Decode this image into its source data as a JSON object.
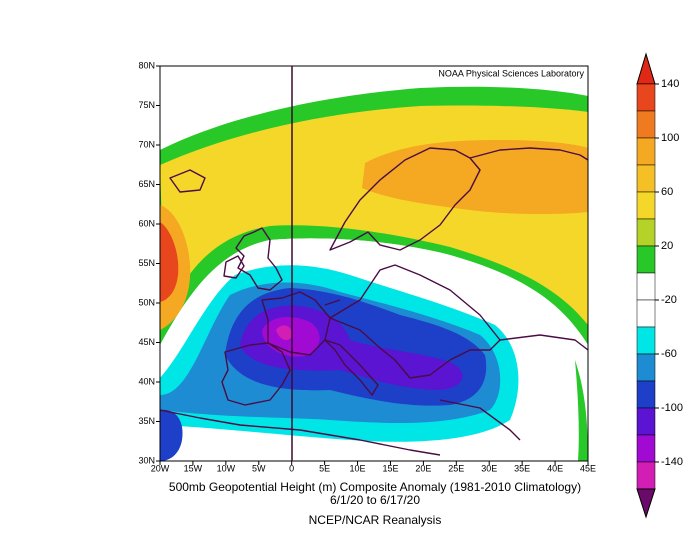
{
  "map": {
    "credit": "NOAA Physical Sciences Laboratory",
    "lat_labels": [
      "80N",
      "75N",
      "70N",
      "65N",
      "60N",
      "55N",
      "50N",
      "45N",
      "40N",
      "35N",
      "30N"
    ],
    "lon_labels": [
      "20W",
      "15W",
      "10W",
      "5W",
      "0",
      "5E",
      "10E",
      "15E",
      "20E",
      "25E",
      "30E",
      "35E",
      "40E",
      "45E"
    ],
    "colorbar_labels": [
      140,
      100,
      60,
      20,
      -20,
      -60,
      -100,
      -140
    ],
    "caption": {
      "title": "500mb Geopotential Height (m) Composite Anomaly (1981-2010 Climatology)",
      "dates": "6/1/20  to 6/17/20",
      "source": "NCEP/NCAR Reanalysis"
    }
  }
}
